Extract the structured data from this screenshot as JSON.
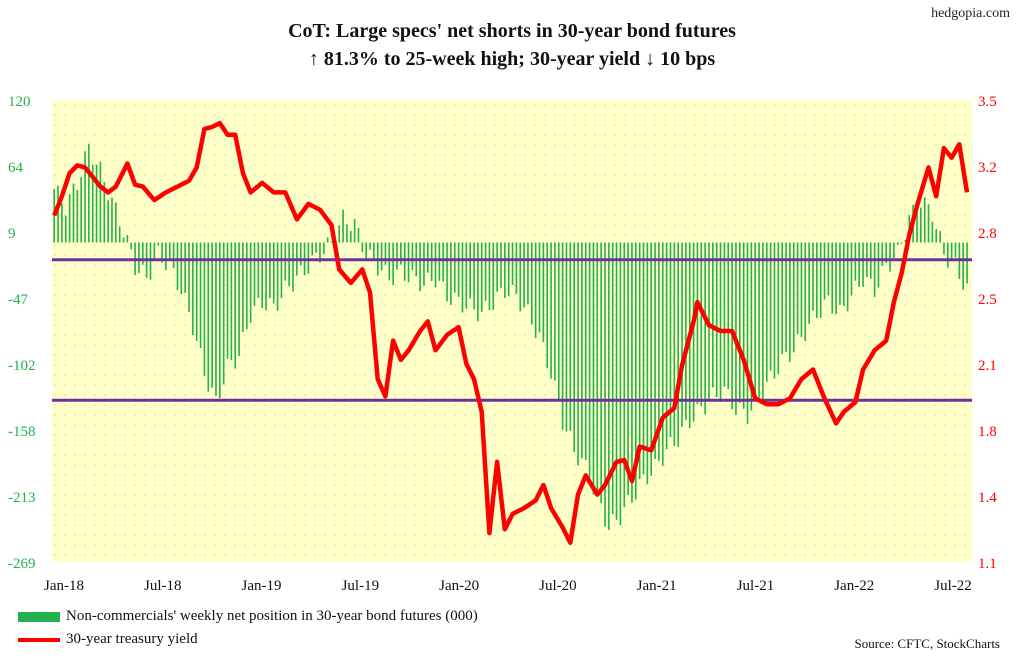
{
  "site": "hedgopia.com",
  "source": "Source: CFTC, StockCharts",
  "chart_data": {
    "type": "bar+line",
    "title": "CoT: Large specs' net shorts in 30-year bond futures",
    "subtitle": "↑ 81.3% to 25-week high; 30-year yield ↓ 10 bps",
    "x_tick_labels": [
      "Jan-18",
      "Jul-18",
      "Jan-19",
      "Jul-19",
      "Jan-20",
      "Jul-20",
      "Jan-21",
      "Jul-21",
      "Jan-22",
      "Jul-22"
    ],
    "xlim": [
      "2018-01-01",
      "2022-07-31"
    ],
    "left_axis": {
      "ticks": [
        120,
        64,
        9,
        -47,
        -102,
        -158,
        -213,
        -269
      ],
      "ylim": [
        -269,
        120
      ],
      "color": "#22b14c"
    },
    "right_axis": {
      "ticks": [
        3.5,
        3.2,
        2.8,
        2.5,
        2.1,
        1.8,
        1.4,
        1.1
      ],
      "ylim": [
        1.1,
        3.5
      ],
      "color": "#ff0000"
    },
    "grid": "dotted",
    "background_color": "#ffffc8",
    "legend_position": "bottom-left",
    "reference_lines": [
      {
        "axis": "right",
        "value": 2.67,
        "color": "#7030a0"
      },
      {
        "axis": "right",
        "value": 1.94,
        "color": "#7030a0"
      }
    ],
    "series": [
      {
        "name": "Non-commercials' weekly net position in 30-year bond futures (000)",
        "kind": "bar",
        "axis": "left",
        "color": "#22b14c",
        "points": [
          [
            "2018-01-05",
            45
          ],
          [
            "2018-01-26",
            30
          ],
          [
            "2018-02-16",
            50
          ],
          [
            "2018-03-09",
            80
          ],
          [
            "2018-03-30",
            60
          ],
          [
            "2018-04-20",
            35
          ],
          [
            "2018-05-11",
            10
          ],
          [
            "2018-06-01",
            -20
          ],
          [
            "2018-06-22",
            -30
          ],
          [
            "2018-07-13",
            -10
          ],
          [
            "2018-08-03",
            -20
          ],
          [
            "2018-08-24",
            -40
          ],
          [
            "2018-09-14",
            -70
          ],
          [
            "2018-10-05",
            -110
          ],
          [
            "2018-10-26",
            -135
          ],
          [
            "2018-11-16",
            -105
          ],
          [
            "2018-12-07",
            -95
          ],
          [
            "2018-12-28",
            -60
          ],
          [
            "2019-01-18",
            -50
          ],
          [
            "2019-02-08",
            -55
          ],
          [
            "2019-03-01",
            -40
          ],
          [
            "2019-03-22",
            -30
          ],
          [
            "2019-04-12",
            -20
          ],
          [
            "2019-05-03",
            -10
          ],
          [
            "2019-05-24",
            0
          ],
          [
            "2019-06-14",
            20
          ],
          [
            "2019-07-05",
            15
          ],
          [
            "2019-07-26",
            -10
          ],
          [
            "2019-08-16",
            -20
          ],
          [
            "2019-09-06",
            -30
          ],
          [
            "2019-09-27",
            -25
          ],
          [
            "2019-10-18",
            -30
          ],
          [
            "2019-11-08",
            -35
          ],
          [
            "2019-11-29",
            -30
          ],
          [
            "2019-12-20",
            -45
          ],
          [
            "2020-01-10",
            -50
          ],
          [
            "2020-01-31",
            -55
          ],
          [
            "2020-02-21",
            -60
          ],
          [
            "2020-03-13",
            -50
          ],
          [
            "2020-04-03",
            -40
          ],
          [
            "2020-04-24",
            -45
          ],
          [
            "2020-05-15",
            -60
          ],
          [
            "2020-06-05",
            -80
          ],
          [
            "2020-06-26",
            -110
          ],
          [
            "2020-07-17",
            -150
          ],
          [
            "2020-08-07",
            -175
          ],
          [
            "2020-08-28",
            -190
          ],
          [
            "2020-09-18",
            -215
          ],
          [
            "2020-10-09",
            -240
          ],
          [
            "2020-10-30",
            -230
          ],
          [
            "2020-11-20",
            -215
          ],
          [
            "2020-12-11",
            -200
          ],
          [
            "2021-01-01",
            -190
          ],
          [
            "2021-01-22",
            -175
          ],
          [
            "2021-02-12",
            -165
          ],
          [
            "2021-03-05",
            -150
          ],
          [
            "2021-03-26",
            -140
          ],
          [
            "2021-04-16",
            -130
          ],
          [
            "2021-05-07",
            -125
          ],
          [
            "2021-05-28",
            -140
          ],
          [
            "2021-06-18",
            -145
          ],
          [
            "2021-07-09",
            -130
          ],
          [
            "2021-07-30",
            -115
          ],
          [
            "2021-08-20",
            -100
          ],
          [
            "2021-09-10",
            -90
          ],
          [
            "2021-10-01",
            -75
          ],
          [
            "2021-10-22",
            -60
          ],
          [
            "2021-11-12",
            -50
          ],
          [
            "2021-12-03",
            -60
          ],
          [
            "2021-12-24",
            -45
          ],
          [
            "2022-01-14",
            -30
          ],
          [
            "2022-02-04",
            -40
          ],
          [
            "2022-02-25",
            -20
          ],
          [
            "2022-03-18",
            -10
          ],
          [
            "2022-04-08",
            20
          ],
          [
            "2022-04-29",
            35
          ],
          [
            "2022-05-20",
            25
          ],
          [
            "2022-06-10",
            -10
          ],
          [
            "2022-07-01",
            -20
          ],
          [
            "2022-07-22",
            -40
          ]
        ]
      },
      {
        "name": "30-year treasury yield",
        "kind": "line",
        "axis": "right",
        "color": "#ff0000",
        "points": [
          [
            "2018-01-05",
            2.9
          ],
          [
            "2018-01-19",
            3.0
          ],
          [
            "2018-02-02",
            3.12
          ],
          [
            "2018-02-16",
            3.16
          ],
          [
            "2018-03-02",
            3.15
          ],
          [
            "2018-03-16",
            3.1
          ],
          [
            "2018-03-30",
            3.05
          ],
          [
            "2018-04-13",
            3.02
          ],
          [
            "2018-04-27",
            3.05
          ],
          [
            "2018-05-18",
            3.17
          ],
          [
            "2018-06-01",
            3.06
          ],
          [
            "2018-06-15",
            3.05
          ],
          [
            "2018-07-06",
            2.98
          ],
          [
            "2018-07-27",
            3.02
          ],
          [
            "2018-08-17",
            3.05
          ],
          [
            "2018-09-07",
            3.08
          ],
          [
            "2018-09-21",
            3.15
          ],
          [
            "2018-10-05",
            3.35
          ],
          [
            "2018-10-19",
            3.36
          ],
          [
            "2018-11-02",
            3.38
          ],
          [
            "2018-11-16",
            3.32
          ],
          [
            "2018-11-30",
            3.32
          ],
          [
            "2018-12-14",
            3.12
          ],
          [
            "2018-12-28",
            3.02
          ],
          [
            "2019-01-18",
            3.07
          ],
          [
            "2019-02-08",
            3.02
          ],
          [
            "2019-03-01",
            3.02
          ],
          [
            "2019-03-22",
            2.88
          ],
          [
            "2019-04-12",
            2.96
          ],
          [
            "2019-05-03",
            2.93
          ],
          [
            "2019-05-24",
            2.85
          ],
          [
            "2019-06-07",
            2.62
          ],
          [
            "2019-06-28",
            2.55
          ],
          [
            "2019-07-19",
            2.62
          ],
          [
            "2019-08-02",
            2.5
          ],
          [
            "2019-08-16",
            2.05
          ],
          [
            "2019-08-30",
            1.96
          ],
          [
            "2019-09-13",
            2.25
          ],
          [
            "2019-09-27",
            2.15
          ],
          [
            "2019-10-11",
            2.2
          ],
          [
            "2019-11-01",
            2.3
          ],
          [
            "2019-11-15",
            2.35
          ],
          [
            "2019-11-29",
            2.2
          ],
          [
            "2019-12-20",
            2.28
          ],
          [
            "2020-01-10",
            2.32
          ],
          [
            "2020-01-24",
            2.13
          ],
          [
            "2020-02-07",
            2.05
          ],
          [
            "2020-02-21",
            1.88
          ],
          [
            "2020-03-06",
            1.25
          ],
          [
            "2020-03-20",
            1.62
          ],
          [
            "2020-04-03",
            1.27
          ],
          [
            "2020-04-17",
            1.35
          ],
          [
            "2020-05-08",
            1.38
          ],
          [
            "2020-05-29",
            1.42
          ],
          [
            "2020-06-12",
            1.5
          ],
          [
            "2020-06-26",
            1.38
          ],
          [
            "2020-07-17",
            1.28
          ],
          [
            "2020-07-31",
            1.2
          ],
          [
            "2020-08-14",
            1.45
          ],
          [
            "2020-08-28",
            1.55
          ],
          [
            "2020-09-18",
            1.45
          ],
          [
            "2020-10-02",
            1.5
          ],
          [
            "2020-10-23",
            1.62
          ],
          [
            "2020-11-06",
            1.63
          ],
          [
            "2020-11-20",
            1.52
          ],
          [
            "2020-12-04",
            1.7
          ],
          [
            "2020-12-25",
            1.68
          ],
          [
            "2021-01-15",
            1.85
          ],
          [
            "2021-02-05",
            1.9
          ],
          [
            "2021-02-19",
            2.12
          ],
          [
            "2021-03-12",
            2.35
          ],
          [
            "2021-03-19",
            2.45
          ],
          [
            "2021-04-09",
            2.33
          ],
          [
            "2021-04-30",
            2.3
          ],
          [
            "2021-05-21",
            2.3
          ],
          [
            "2021-06-11",
            2.15
          ],
          [
            "2021-07-02",
            1.95
          ],
          [
            "2021-07-23",
            1.92
          ],
          [
            "2021-08-13",
            1.92
          ],
          [
            "2021-09-03",
            1.95
          ],
          [
            "2021-09-24",
            2.05
          ],
          [
            "2021-10-15",
            2.1
          ],
          [
            "2021-11-05",
            1.95
          ],
          [
            "2021-11-26",
            1.82
          ],
          [
            "2021-12-10",
            1.88
          ],
          [
            "2021-12-31",
            1.93
          ],
          [
            "2022-01-14",
            2.1
          ],
          [
            "2022-02-04",
            2.2
          ],
          [
            "2022-02-25",
            2.25
          ],
          [
            "2022-03-11",
            2.45
          ],
          [
            "2022-03-25",
            2.6
          ],
          [
            "2022-04-08",
            2.8
          ],
          [
            "2022-04-22",
            2.95
          ],
          [
            "2022-05-13",
            3.15
          ],
          [
            "2022-05-27",
            3.0
          ],
          [
            "2022-06-10",
            3.25
          ],
          [
            "2022-06-24",
            3.2
          ],
          [
            "2022-07-08",
            3.27
          ],
          [
            "2022-07-22",
            3.02
          ]
        ]
      }
    ]
  }
}
